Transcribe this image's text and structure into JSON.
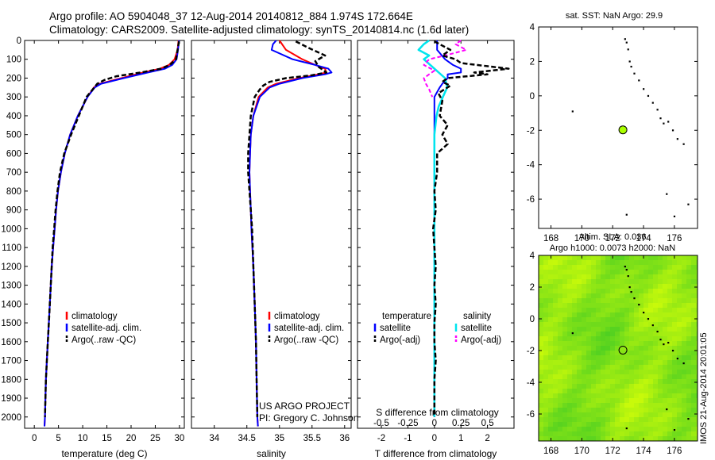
{
  "header": {
    "line1": "Argo profile: AO 5904048_37 12-Aug-2014 20140812_884 1.974S 172.664E",
    "line2": "Climatology: CARS2009. Satellite-adjusted climatology: synTS_20140814.nc (1.6d later)"
  },
  "credits": {
    "line1": "US ARGO PROJECT",
    "line2": "PI: Gregory C. Johnson"
  },
  "stamp": "IMOS 21-Aug-2014 20:01:05",
  "colors": {
    "climatology": "#ff0000",
    "satellite": "#0000ff",
    "argo": "#000000",
    "sal_satellite": "#00e5ee",
    "sal_argo": "#ff00ff",
    "map_track": "#000000",
    "float_marker": "#aaff00"
  },
  "depth_axis": {
    "ylim": [
      2060,
      0
    ],
    "ticks": [
      0,
      100,
      200,
      300,
      400,
      500,
      600,
      700,
      800,
      900,
      1000,
      1100,
      1200,
      1300,
      1400,
      1500,
      1600,
      1700,
      1800,
      1900,
      2000
    ],
    "tick_labels": [
      "0",
      "100",
      "200",
      "300",
      "400",
      "500",
      "600",
      "700",
      "800",
      "900",
      "1000",
      "1100",
      "1200",
      "1300",
      "1400",
      "1500",
      "1600",
      "1700",
      "1800",
      "1900",
      "2000"
    ]
  },
  "legends": {
    "temp": [
      "climatology",
      "satellite-adj. clim.",
      "Argo(..raw -QC)"
    ],
    "sal": [
      "climatology",
      "satellite-adj. clim.",
      "Argo(..raw -QC)"
    ],
    "diff_heads": [
      "temperature",
      "salinity"
    ],
    "diff_items": [
      "satellite",
      "Argo(-adj)",
      "satellite",
      "Argo(-adj)"
    ]
  },
  "chart_data": [
    {
      "id": "temperature",
      "type": "line",
      "xlabel": "temperature (deg C)",
      "xlim": [
        -2,
        31
      ],
      "xticks": [
        0,
        5,
        10,
        15,
        20,
        25,
        30
      ],
      "xtick_labels": [
        "0",
        "5",
        "10",
        "15",
        "20",
        "25",
        "30"
      ],
      "series": [
        {
          "name": "climatology",
          "depth": [
            0,
            50,
            100,
            130,
            150,
            170,
            200,
            230,
            250,
            300,
            400,
            500,
            600,
            700,
            800,
            900,
            1000,
            1100,
            1200,
            1300,
            1400,
            1500,
            1600,
            1700,
            1800,
            1900,
            2000,
            2050
          ],
          "values": [
            29.8,
            29.6,
            29.0,
            27.8,
            26.0,
            22.5,
            18.0,
            13.5,
            12.3,
            11.0,
            9.0,
            7.4,
            6.3,
            5.5,
            4.9,
            4.5,
            4.2,
            3.9,
            3.6,
            3.4,
            3.2,
            3.0,
            2.8,
            2.6,
            2.4,
            2.3,
            2.2,
            2.1
          ]
        },
        {
          "name": "satellite-adj. clim.",
          "depth": [
            0,
            50,
            100,
            130,
            150,
            170,
            200,
            230,
            250,
            300,
            400,
            500,
            600,
            700,
            800,
            900,
            1000,
            1100,
            1200,
            1300,
            1400,
            1500,
            1600,
            1700,
            1800,
            1900,
            2000,
            2050
          ],
          "values": [
            29.9,
            29.7,
            29.4,
            28.5,
            27.0,
            23.5,
            18.5,
            13.8,
            12.5,
            11.0,
            9.0,
            7.4,
            6.3,
            5.5,
            4.9,
            4.5,
            4.2,
            3.9,
            3.6,
            3.4,
            3.2,
            3.0,
            2.8,
            2.6,
            2.4,
            2.3,
            2.2,
            2.1
          ]
        },
        {
          "name": "Argo(..raw -QC)",
          "depth": [
            5,
            50,
            100,
            130,
            150,
            170,
            190,
            210,
            230,
            250,
            300,
            400,
            500,
            600,
            700,
            800,
            900,
            1000,
            1100,
            1200,
            1300,
            1400,
            1500,
            1600,
            1700,
            1800,
            1900,
            2000
          ],
          "values": [
            29.9,
            29.6,
            29.3,
            28.0,
            26.2,
            22.0,
            17.0,
            14.5,
            13.0,
            12.4,
            10.8,
            9.2,
            7.6,
            6.2,
            5.3,
            4.8,
            4.4,
            4.1,
            3.8,
            3.6,
            3.4,
            3.2,
            3.0,
            2.8,
            2.6,
            2.4,
            2.3,
            2.2
          ]
        }
      ]
    },
    {
      "id": "salinity",
      "type": "line",
      "xlabel": "salinity",
      "xlim": [
        33.65,
        36.1
      ],
      "xticks": [
        34,
        34.5,
        35,
        35.5,
        36
      ],
      "xtick_labels": [
        "34",
        "34.5",
        "35",
        "35.5",
        "36"
      ],
      "series": [
        {
          "name": "climatology",
          "depth": [
            0,
            50,
            100,
            130,
            150,
            170,
            180,
            200,
            230,
            250,
            300,
            400,
            500,
            600,
            700,
            800,
            900,
            1000,
            1200,
            1400,
            1600,
            1800,
            2000,
            2050
          ],
          "values": [
            35.0,
            35.1,
            35.35,
            35.55,
            35.7,
            35.72,
            35.6,
            35.3,
            34.95,
            34.82,
            34.68,
            34.6,
            34.56,
            34.55,
            34.54,
            34.55,
            34.56,
            34.57,
            34.6,
            34.62,
            34.64,
            34.65,
            34.66,
            34.67
          ]
        },
        {
          "name": "satellite-adj. clim.",
          "depth": [
            0,
            20,
            50,
            100,
            130,
            150,
            170,
            180,
            200,
            230,
            250,
            300,
            400,
            500,
            600,
            700,
            800,
            900,
            1000,
            1200,
            1400,
            1600,
            1800,
            2000,
            2050
          ],
          "values": [
            34.95,
            34.9,
            34.88,
            35.2,
            35.55,
            35.75,
            35.8,
            35.7,
            35.35,
            35.0,
            34.85,
            34.7,
            34.6,
            34.56,
            34.55,
            34.54,
            34.55,
            34.56,
            34.57,
            34.6,
            34.62,
            34.64,
            34.65,
            34.66,
            34.67
          ]
        },
        {
          "name": "Argo(..raw -QC)",
          "depth": [
            5,
            40,
            80,
            110,
            140,
            170,
            185,
            200,
            220,
            240,
            260,
            300,
            400,
            500,
            600,
            700,
            800,
            900,
            1000,
            1200,
            1400,
            1600,
            1800,
            2000
          ],
          "values": [
            35.25,
            35.45,
            35.7,
            35.55,
            35.6,
            35.72,
            35.5,
            35.1,
            34.85,
            34.75,
            34.7,
            34.62,
            34.56,
            34.54,
            34.52,
            34.52,
            34.54,
            34.56,
            34.58,
            34.6,
            34.62,
            34.64,
            34.65,
            34.66
          ]
        }
      ]
    },
    {
      "id": "difference",
      "type": "line",
      "xlabel": "T difference from climatology",
      "xlabel_top": "S difference from climatology",
      "xlim": [
        -2.9,
        3.0
      ],
      "xticks": [
        -2,
        -1,
        0,
        1,
        2
      ],
      "xtick_labels": [
        "-2",
        "-1",
        "0",
        "1",
        "2"
      ],
      "top_ticks": [
        -0.5,
        -0.25,
        0,
        0.25,
        0.5
      ],
      "top_tick_labels": [
        "-0.5",
        "-0.25",
        "0",
        "0.25",
        "0.5"
      ],
      "top_scale": 4,
      "series": [
        {
          "name": "temperature satellite",
          "depth": [
            0,
            50,
            100,
            130,
            150,
            170,
            180,
            200,
            230,
            250,
            300,
            400,
            500,
            600,
            800,
            1000,
            1500,
            2000
          ],
          "values": [
            0.1,
            0.1,
            0.4,
            0.7,
            1.0,
            1.0,
            0.5,
            0.5,
            0.3,
            0.2,
            0.0,
            0.0,
            0.0,
            0.0,
            0.0,
            0.0,
            0.0,
            0.0
          ]
        },
        {
          "name": "temperature Argo(-adj)",
          "depth": [
            5,
            50,
            80,
            100,
            120,
            150,
            170,
            180,
            200,
            220,
            240,
            280,
            320,
            400,
            450,
            500,
            550,
            600,
            700,
            800,
            900,
            1000,
            1100,
            1200,
            1300,
            1400,
            1500,
            1600,
            1700,
            1800,
            1900,
            2000
          ],
          "values": [
            0.0,
            0.6,
            0.3,
            0.8,
            1.0,
            2.8,
            1.5,
            2.0,
            0.5,
            0.3,
            0.6,
            0.15,
            0.3,
            0.2,
            0.5,
            0.3,
            0.5,
            0.1,
            0.1,
            0.0,
            0.05,
            -0.05,
            0.0,
            0.05,
            0.0,
            0.05,
            0.0,
            0.0,
            0.05,
            0.0,
            0.0,
            0.0
          ]
        },
        {
          "name": "salinity satellite",
          "depth": [
            0,
            20,
            50,
            80,
            100,
            150,
            200,
            250,
            300,
            350,
            400,
            500,
            600,
            800,
            1000,
            1500,
            2000
          ],
          "values": [
            -0.05,
            -0.1,
            -0.15,
            -0.05,
            -0.1,
            0.0,
            0.1,
            0.12,
            0.08,
            0.04,
            0.02,
            0.0,
            0.0,
            0.0,
            0.0,
            0.0,
            0.0
          ]
        },
        {
          "name": "salinity Argo(-adj)",
          "depth": [
            0,
            20,
            50,
            80,
            100,
            130,
            160,
            200,
            230,
            260,
            300
          ],
          "values": [
            0.25,
            0.2,
            0.3,
            0.1,
            -0.05,
            -0.1,
            0.0,
            -0.1,
            -0.08,
            -0.05,
            -0.02
          ]
        }
      ]
    },
    {
      "id": "sst_map",
      "type": "scatter",
      "title": "sat. SST: NaN Argo: 29.9",
      "xlim": [
        167.2,
        177.5
      ],
      "ylim": [
        -7.7,
        4.0
      ],
      "xticks": [
        168,
        170,
        172,
        174,
        176
      ],
      "xtick_labels": [
        "168",
        "170",
        "172",
        "174",
        "176"
      ],
      "yticks": [
        -6,
        -4,
        -2,
        0,
        2,
        4
      ],
      "ytick_labels": [
        "-6",
        "-4",
        "-2",
        "0",
        "2",
        "4"
      ],
      "track_lon": [
        172.8,
        172.9,
        173.1,
        173.2,
        173.4,
        173.7,
        174.0,
        174.3,
        174.6,
        174.9,
        175.1,
        175.3,
        175.6,
        175.9,
        176.2,
        176.6,
        176.9,
        169.4,
        172.9,
        173.0,
        175.5,
        176.0
      ],
      "track_lat": [
        3.3,
        3.1,
        2.0,
        1.7,
        1.3,
        0.9,
        0.4,
        0.0,
        -0.4,
        -0.8,
        -1.3,
        -1.6,
        -1.5,
        -2.0,
        -2.5,
        -2.8,
        -6.3,
        -0.9,
        -6.9,
        2.7,
        -5.7,
        -7.0
      ],
      "float": {
        "lon": 172.664,
        "lat": -1.974
      }
    },
    {
      "id": "sla_map",
      "type": "heatmap",
      "title_line1": "Altim. SLA: 0.036",
      "title_line2": "Argo h1000: 0.0073 h2000: NaN",
      "xlim": [
        167.2,
        177.5
      ],
      "ylim": [
        -7.7,
        4.0
      ],
      "xticks": [
        168,
        170,
        172,
        174,
        176
      ],
      "xtick_labels": [
        "168",
        "170",
        "172",
        "174",
        "176"
      ],
      "yticks": [
        -6,
        -4,
        -2,
        0,
        2,
        4
      ],
      "ytick_labels": [
        "-6",
        "-4",
        "-2",
        "0",
        "2",
        "4"
      ],
      "track_lon": [
        172.8,
        172.9,
        173.1,
        173.2,
        173.4,
        173.7,
        174.0,
        174.3,
        174.6,
        174.9,
        175.1,
        175.3,
        175.6,
        175.9,
        176.2,
        176.6,
        176.9,
        169.4,
        172.9,
        173.0,
        175.5,
        176.0
      ],
      "track_lat": [
        3.3,
        3.1,
        2.0,
        1.7,
        1.3,
        0.9,
        0.4,
        0.0,
        -0.4,
        -0.8,
        -1.3,
        -1.6,
        -1.5,
        -2.0,
        -2.5,
        -2.8,
        -6.3,
        -0.9,
        -6.9,
        2.7,
        -5.7,
        -7.0
      ],
      "float": {
        "lon": 172.664,
        "lat": -1.974
      }
    }
  ]
}
